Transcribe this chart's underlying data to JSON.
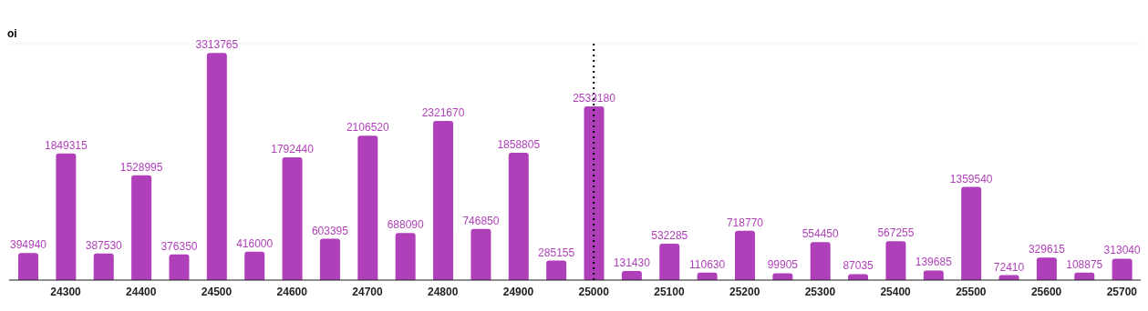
{
  "chart_data": {
    "type": "bar",
    "ylabel": "oi",
    "categories": [
      null,
      "24300",
      null,
      "24400",
      null,
      "24500",
      null,
      "24600",
      null,
      "24700",
      null,
      "24800",
      null,
      "24900",
      null,
      "25000",
      null,
      "25100",
      null,
      "25200",
      null,
      "25300",
      null,
      "25400",
      null,
      "25500",
      null,
      "25600",
      null,
      "25700"
    ],
    "values": [
      394940,
      1849315,
      387530,
      1528995,
      376350,
      3313765,
      416000,
      1792440,
      603395,
      2106520,
      688090,
      2321670,
      746850,
      1858805,
      285155,
      2533180,
      131430,
      532285,
      110630,
      718770,
      99905,
      554450,
      87035,
      567255,
      139685,
      1359540,
      72410,
      329615,
      108875,
      313040
    ],
    "color": "#b03fba",
    "data_labels": true,
    "ylim": [
      0,
      3450000
    ],
    "tick_labels": "x",
    "grid": "y",
    "ref_lines": [
      {
        "axis": "x",
        "value": "25000",
        "line_style": "dotted",
        "color": "#000000"
      }
    ]
  }
}
